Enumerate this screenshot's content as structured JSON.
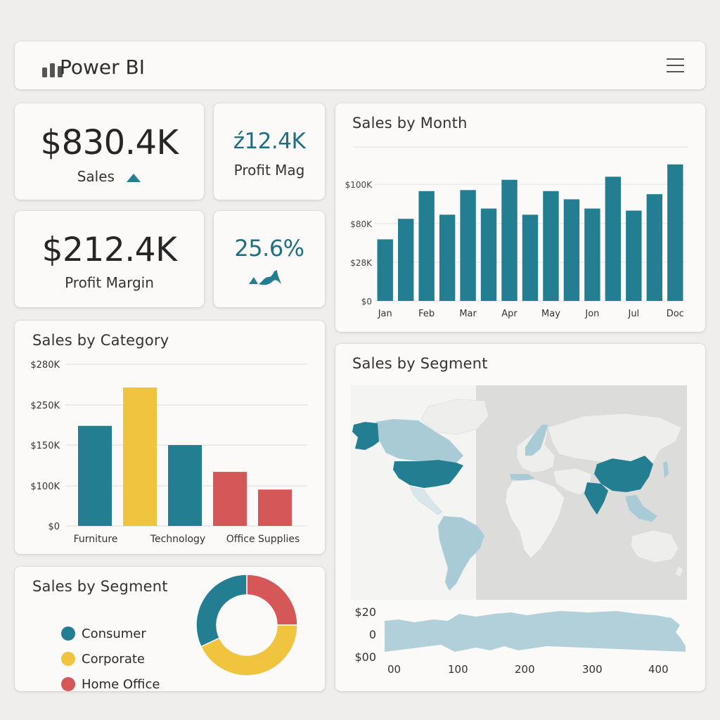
{
  "app": {
    "title": "Power BI",
    "logo_icon": "bar-chart-icon",
    "menu_icon": "hamburger-menu-icon"
  },
  "colors": {
    "teal": "#237e92",
    "yellow": "#f0c43f",
    "red": "#d65757",
    "map_land": "#eeeeec",
    "map_light": "#a9cbd6"
  },
  "kpis": {
    "sales": {
      "value": "$830.4K",
      "label": "Sales",
      "trend_icon": "triangle-up-icon"
    },
    "profit_mag": {
      "value": "ź12.4K",
      "label": "Profit Mag"
    },
    "profit_margin": {
      "value": "$212.4K",
      "label": "Profit Margin"
    },
    "percent": {
      "value": "25.6%",
      "trend_icon": "sparkline-up-icon"
    }
  },
  "sales_by_month": {
    "title": "Sales by Month",
    "chart_data": {
      "type": "bar",
      "categories": [
        "Jan",
        "",
        "Feb",
        "",
        "Mar",
        "",
        "Apr",
        "",
        "May",
        "",
        "Jon",
        "",
        "Jul",
        "",
        "Doc"
      ],
      "x_tick_labels": [
        "Jan",
        "Feb",
        "Mar",
        "Apr",
        "May",
        "Jon",
        "Jul",
        "Doc"
      ],
      "y_tick_labels": [
        "$100K",
        "$80K",
        "$28K",
        "$0"
      ],
      "values": [
        60,
        80,
        107,
        84,
        108,
        90,
        118,
        84,
        107,
        99,
        90,
        121,
        88,
        104,
        133
      ],
      "ylim": [
        0,
        150
      ]
    }
  },
  "sales_by_category": {
    "title": "Sales by Category",
    "chart_data": {
      "type": "bar",
      "categories": [
        "Furniture",
        "",
        "Technology",
        "",
        "Office Supplies"
      ],
      "x_tick_labels": [
        "Furniture",
        "Technology",
        "Office Supplies"
      ],
      "y_tick_labels": [
        "$280K",
        "$250K",
        "$150K",
        "$100K",
        "$0"
      ],
      "values": [
        198,
        274,
        160,
        107,
        72
      ],
      "ylim": [
        0,
        320
      ]
    }
  },
  "sales_by_segment_map": {
    "title": "Sales by Segment",
    "y_tick_labels": [
      "$20",
      "0",
      "$00"
    ],
    "x_tick_labels": [
      "00",
      "100",
      "200",
      "300",
      "400"
    ]
  },
  "sales_by_segment_donut": {
    "title": "Sales by Segment",
    "chart_data": {
      "type": "pie",
      "labels": [
        "Home Office",
        "Corporate",
        "Consumer"
      ],
      "values": [
        25,
        43,
        32
      ]
    },
    "legend": [
      {
        "label": "Consumer"
      },
      {
        "label": "Corporate"
      },
      {
        "label": "Home Office"
      }
    ]
  }
}
